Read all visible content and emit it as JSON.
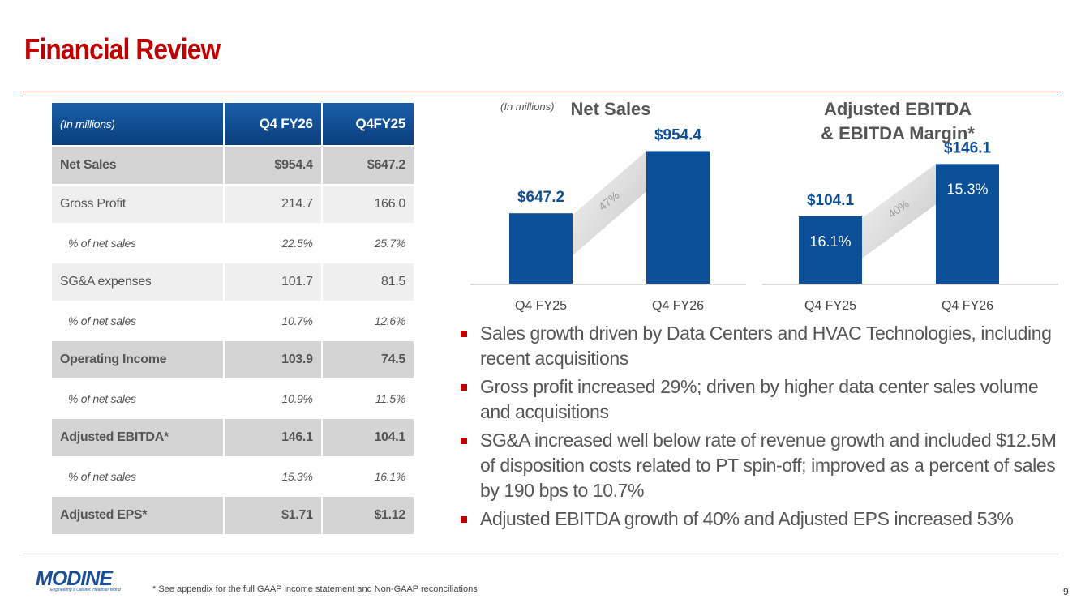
{
  "header": {
    "title": "Financial Review"
  },
  "table": {
    "columns": [
      "(In millions)",
      "Q4 FY26",
      "Q4FY25"
    ],
    "rows": [
      [
        "Net Sales",
        "$954.4",
        "$647.2"
      ],
      [
        "Gross Profit",
        "214.7",
        "166.0"
      ],
      [
        "% of net sales",
        "22.5%",
        "25.7%"
      ],
      [
        "SG&A expenses",
        "101.7",
        "81.5"
      ],
      [
        "% of net sales",
        "10.7%",
        "12.6%"
      ],
      [
        "Operating Income",
        "103.9",
        "74.5"
      ],
      [
        "% of net sales",
        "10.9%",
        "11.5%"
      ],
      [
        "Adjusted EBITDA*",
        "146.1",
        "104.1"
      ],
      [
        "% of net sales",
        "15.3%",
        "16.1%"
      ],
      [
        "Adjusted EPS*",
        "$1.71",
        "$1.12"
      ]
    ]
  },
  "chart_data": [
    {
      "type": "bar",
      "title": "Net Sales",
      "note": "(In millions)",
      "categories": [
        "Q4 FY25",
        "Q4 FY26"
      ],
      "values": [
        647.2,
        954.4
      ],
      "value_labels": [
        "$647.2",
        "$954.4"
      ],
      "growth_label": "47%",
      "color": "#0b4f98",
      "ylim": [
        300,
        1000
      ]
    },
    {
      "type": "bar",
      "title": "Adjusted EBITDA & EBITDA Margin*",
      "categories": [
        "Q4 FY25",
        "Q4 FY26"
      ],
      "values": [
        104.1,
        146.1
      ],
      "value_labels": [
        "$104.1",
        "$146.1"
      ],
      "inner_labels": [
        "16.1%",
        "15.3%"
      ],
      "growth_label": "40%",
      "color": "#0b4f98",
      "ylim": [
        50,
        160
      ]
    }
  ],
  "bullets": [
    "Sales growth driven by Data Centers and HVAC Technologies, including recent acquisitions",
    "Gross profit increased 29%; driven by higher data center sales volume and acquisitions",
    "SG&A increased well below rate of revenue growth and included $12.5M of disposition costs related to PT spin-off; improved as a percent of sales by 190 bps to 10.7%",
    "Adjusted EBITDA growth of 40% and Adjusted EPS increased 53%"
  ],
  "footer": {
    "logo": "MODINE",
    "tagline": "Engineering a Cleaner, Healthier World",
    "note": "* See appendix for the full GAAP income statement and Non-GAAP reconciliations",
    "page": "9"
  }
}
